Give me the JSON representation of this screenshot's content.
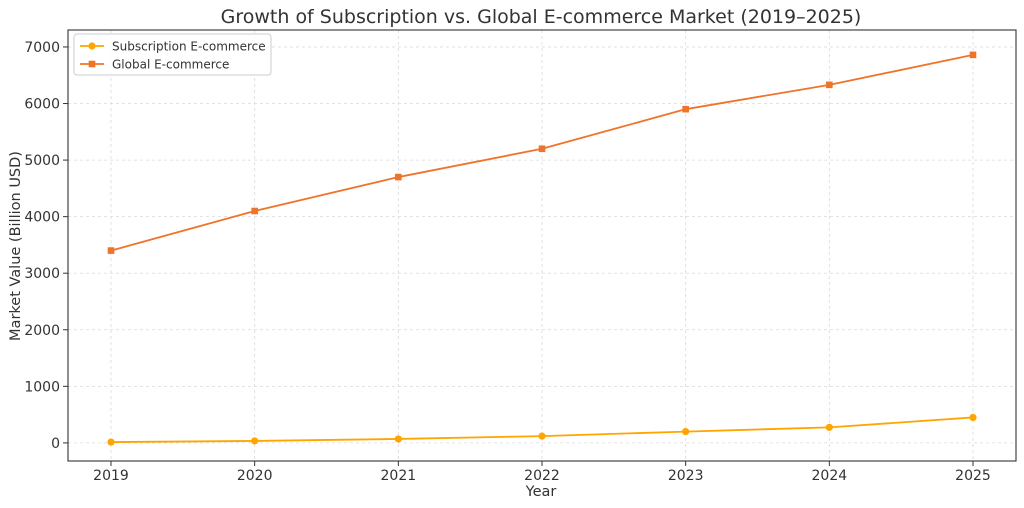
{
  "chart_data": {
    "type": "line",
    "title": "Growth of Subscription vs. Global E-commerce Market (2019–2025)",
    "xlabel": "Year",
    "ylabel": "Market Value (Billion USD)",
    "categories": [
      "2019",
      "2020",
      "2021",
      "2022",
      "2023",
      "2024",
      "2025"
    ],
    "yticks": [
      "0",
      "1000",
      "2000",
      "3000",
      "4000",
      "5000",
      "6000",
      "7000"
    ],
    "ylim": [
      -320,
      7300
    ],
    "grid": true,
    "legend_position": "top-left",
    "series": [
      {
        "name": "Subscription E-commerce",
        "values": [
          15,
          35,
          70,
          120,
          200,
          275,
          450
        ],
        "color": "#ffa500",
        "marker": "circle"
      },
      {
        "name": "Global E-commerce",
        "values": [
          3400,
          4100,
          4700,
          5200,
          5900,
          6330,
          6860
        ],
        "color": "#f0732a",
        "marker": "square"
      }
    ]
  }
}
